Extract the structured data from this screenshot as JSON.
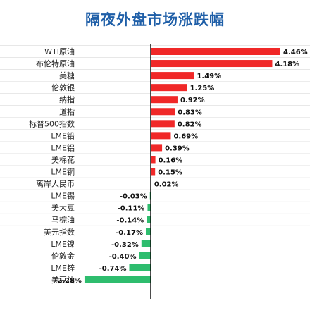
{
  "chart_data": {
    "type": "bar",
    "orientation": "horizontal",
    "title": "隔夜外盘市场涨跌幅",
    "xlabel": "",
    "ylabel": "",
    "unit": "%",
    "xlim": [
      -2.8,
      4.8
    ],
    "grid": true,
    "legend": "none",
    "colors": {
      "positive": "#f02828",
      "negative": "#2ebd6e",
      "title": "#1f5fa8",
      "axis": "#000000",
      "gridline": "#d9d9d9"
    },
    "categories": [
      "WTI原油",
      "布伦特原油",
      "美糖",
      "伦敦银",
      "纳指",
      "道指",
      "标普500指数",
      "LME铅",
      "LME铝",
      "美棉花",
      "LME铜",
      "离岸人民币",
      "LME锡",
      "美大豆",
      "马棕油",
      "美元指数",
      "LME镍",
      "伦敦金",
      "LME锌",
      "美豆油"
    ],
    "values": [
      4.46,
      4.18,
      1.49,
      1.25,
      0.92,
      0.83,
      0.82,
      0.69,
      0.39,
      0.16,
      0.15,
      0.02,
      -0.03,
      -0.11,
      -0.14,
      -0.17,
      -0.32,
      -0.4,
      -0.74,
      -2.28
    ],
    "data_labels": [
      "4.46%",
      "4.18%",
      "1.49%",
      "1.25%",
      "0.92%",
      "0.83%",
      "0.82%",
      "0.69%",
      "0.39%",
      "0.16%",
      "0.15%",
      "0.02%",
      "-0.03%",
      "-0.11%",
      "-0.14%",
      "-0.17%",
      "-0.32%",
      "-0.40%",
      "-0.74%",
      "-2.28%"
    ]
  }
}
